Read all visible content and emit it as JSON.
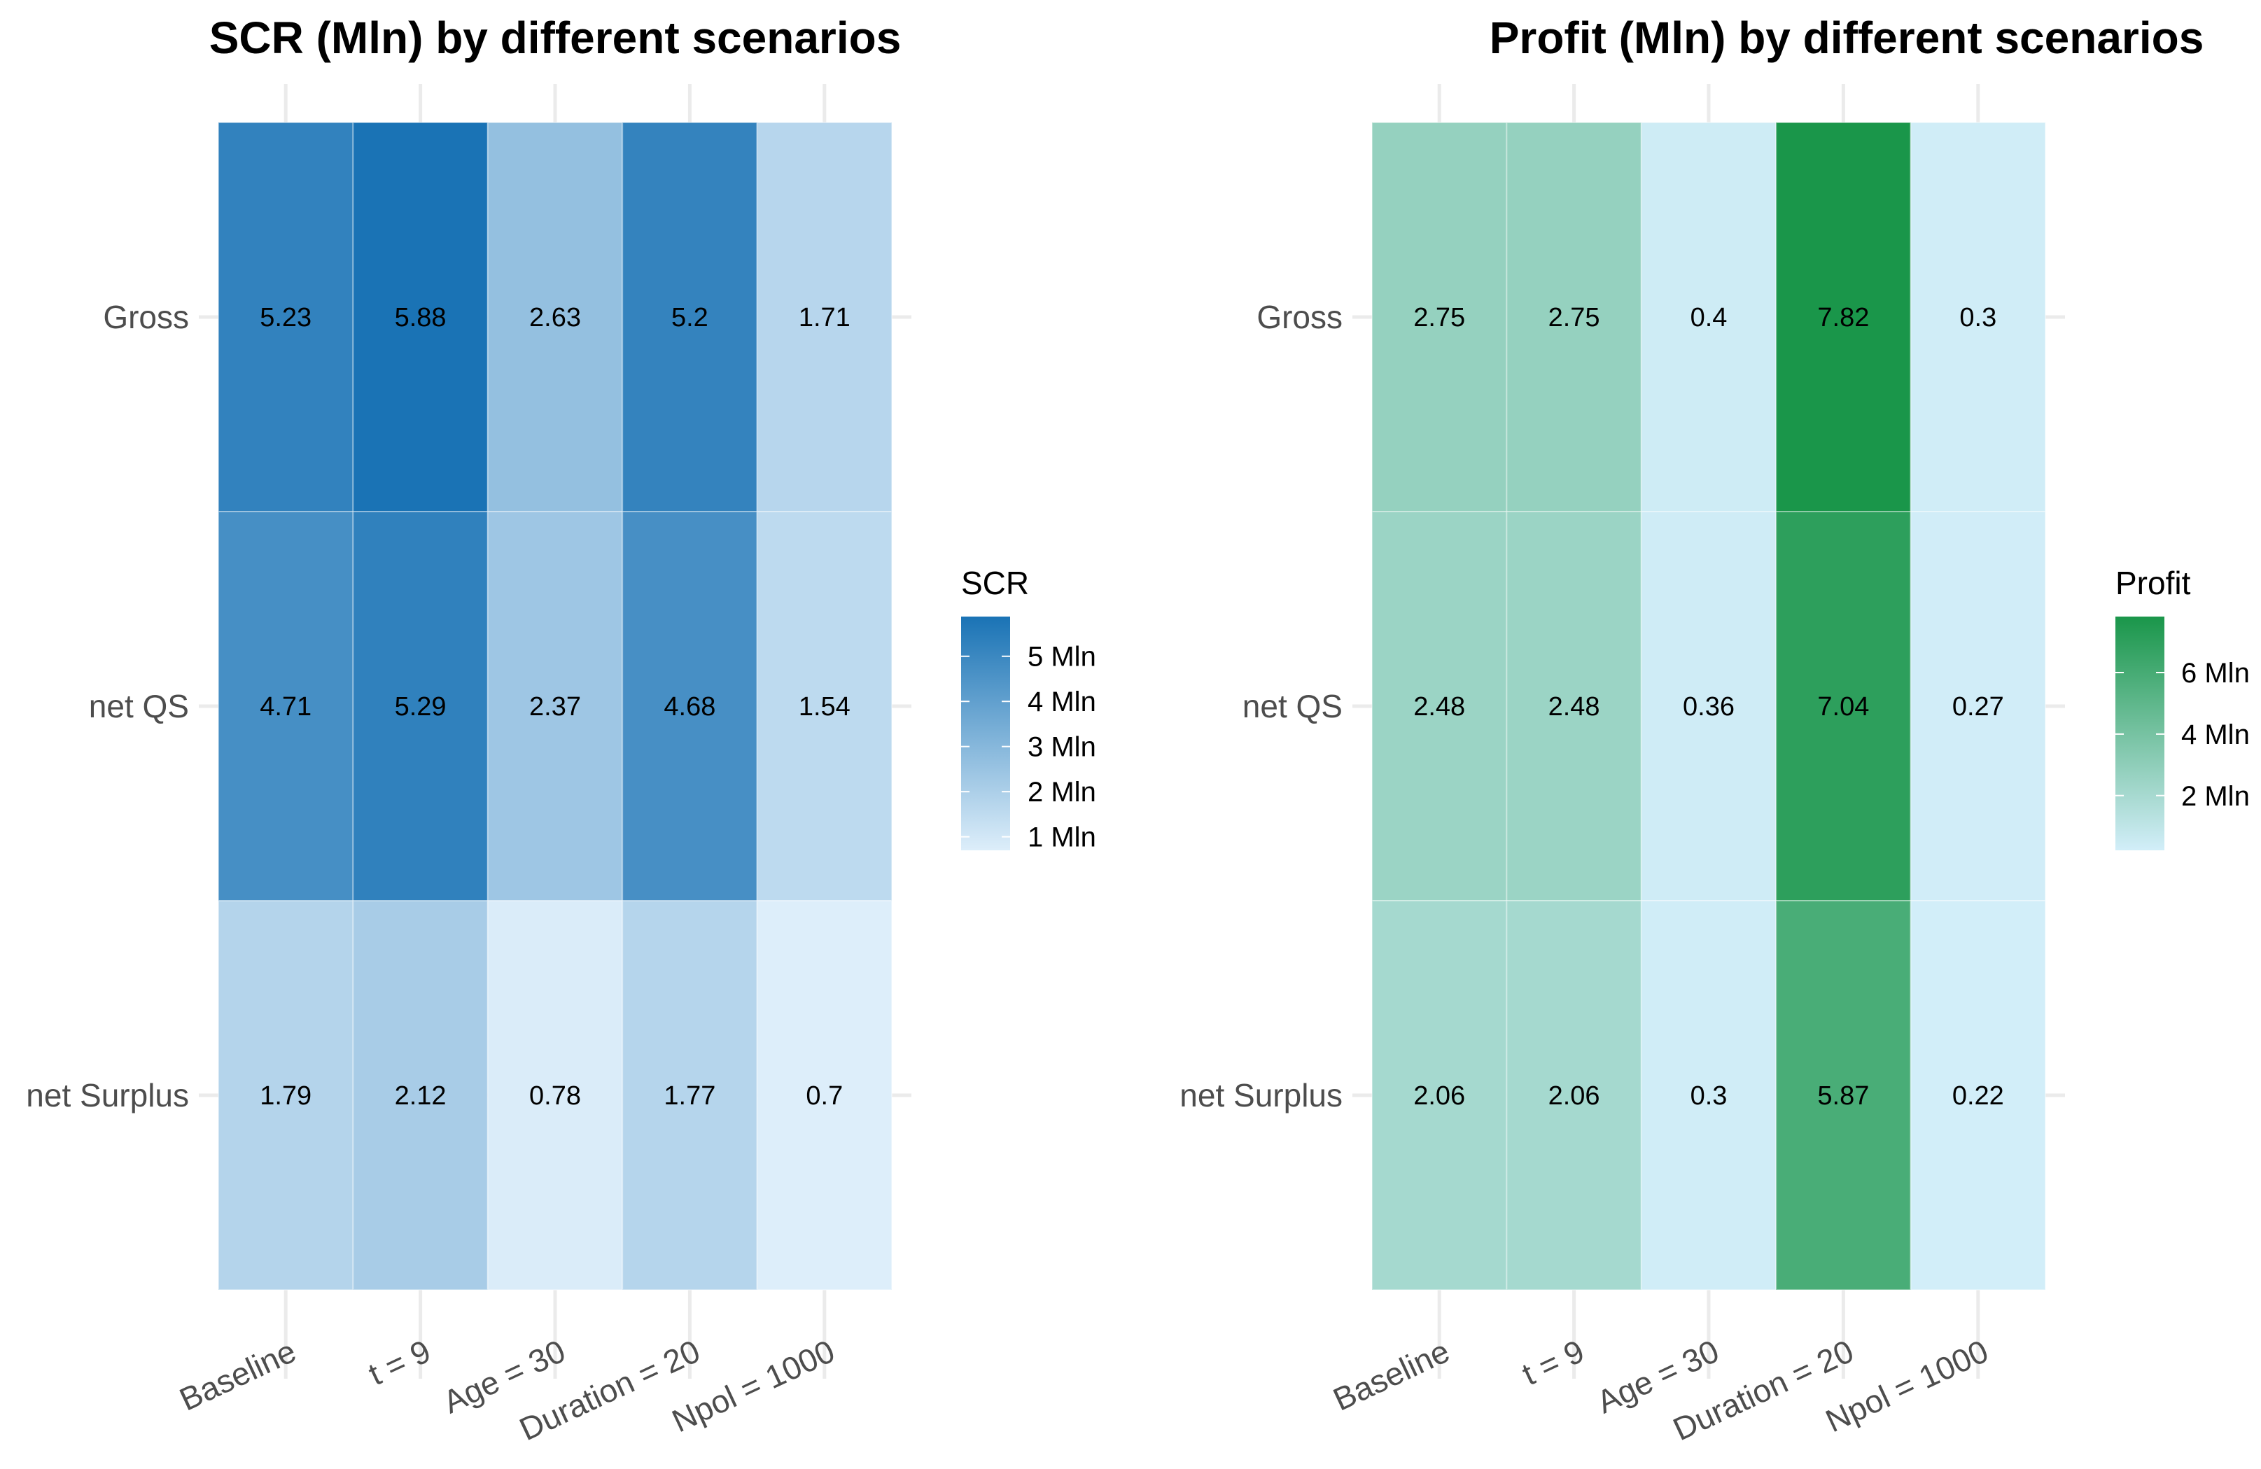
{
  "chart_data": [
    {
      "type": "heatmap",
      "title": "SCR (Mln) by different scenarios",
      "x_categories": [
        "Baseline",
        "t = 9",
        "Age = 30",
        "Duration = 20",
        "Npol = 1000"
      ],
      "y_categories": [
        "Gross",
        "net QS",
        "net Surplus"
      ],
      "values": [
        [
          5.23,
          5.88,
          2.63,
          5.2,
          1.71
        ],
        [
          4.71,
          5.29,
          2.37,
          4.68,
          1.54
        ],
        [
          1.79,
          2.12,
          0.78,
          1.77,
          0.7
        ]
      ],
      "cell_labels": [
        [
          "5.23",
          "5.88",
          "2.63",
          "5.2",
          "1.71"
        ],
        [
          "4.71",
          "5.29",
          "2.37",
          "4.68",
          "1.54"
        ],
        [
          "1.79",
          "2.12",
          "0.78",
          "1.77",
          "0.7"
        ]
      ],
      "legend": {
        "title": "SCR",
        "ticks": [
          5,
          4,
          3,
          2,
          1
        ],
        "tick_labels": [
          "5 Mln",
          "4 Mln",
          "3 Mln",
          "2 Mln",
          "1 Mln"
        ],
        "range": [
          0.7,
          5.88
        ],
        "low_color": "#ddeefa",
        "high_color": "#1a73b5"
      }
    },
    {
      "type": "heatmap",
      "title": "Profit (Mln) by different scenarios",
      "x_categories": [
        "Baseline",
        "t = 9",
        "Age = 30",
        "Duration = 20",
        "Npol = 1000"
      ],
      "y_categories": [
        "Gross",
        "net QS",
        "net Surplus"
      ],
      "values": [
        [
          2.75,
          2.75,
          0.4,
          7.82,
          0.3
        ],
        [
          2.48,
          2.48,
          0.36,
          7.04,
          0.27
        ],
        [
          2.06,
          2.06,
          0.3,
          5.87,
          0.22
        ]
      ],
      "cell_labels": [
        [
          "2.75",
          "2.75",
          "0.4",
          "7.82",
          "0.3"
        ],
        [
          "2.48",
          "2.48",
          "0.36",
          "7.04",
          "0.27"
        ],
        [
          "2.06",
          "2.06",
          "0.3",
          "5.87",
          "0.22"
        ]
      ],
      "legend": {
        "title": "Profit",
        "ticks": [
          6,
          4,
          2
        ],
        "tick_labels": [
          "6 Mln",
          "4 Mln",
          "2 Mln"
        ],
        "range": [
          0.22,
          7.82
        ],
        "low_color": "#d2eef9",
        "high_color": "#1a964a"
      }
    }
  ]
}
